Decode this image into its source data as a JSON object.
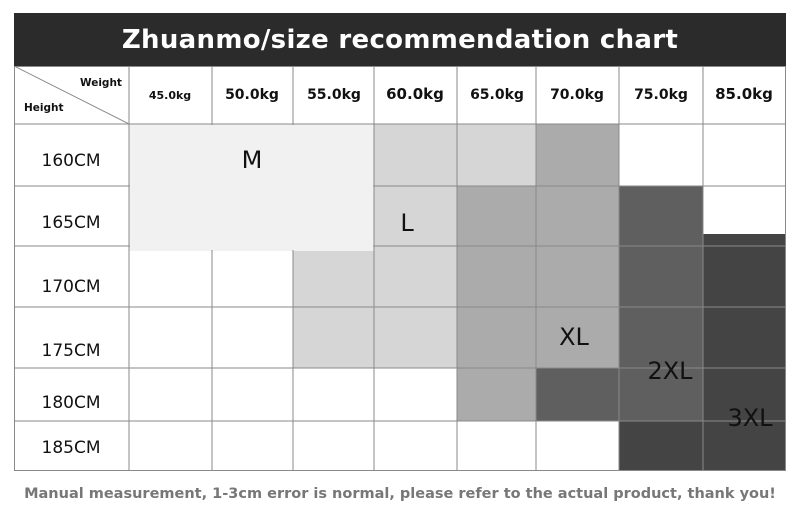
{
  "title": "Zhuanmo/size recommendation chart",
  "corner": {
    "weight_label": "Weight",
    "height_label": "Height"
  },
  "weights": [
    "45.0kg",
    "50.0kg",
    "55.0kg",
    "60.0kg",
    "65.0kg",
    "70.0kg",
    "75.0kg",
    "85.0kg"
  ],
  "heights": [
    "160CM",
    "165CM",
    "170CM",
    "175CM",
    "180CM",
    "185CM"
  ],
  "sizes": [
    {
      "label": "M",
      "color": "#f1f1f1"
    },
    {
      "label": "L",
      "color": "#d6d6d6"
    },
    {
      "label": "XL",
      "color": "#ababab"
    },
    {
      "label": "2XL",
      "color": "#5f5f5f"
    },
    {
      "label": "3XL",
      "color": "#444444"
    }
  ],
  "footer_note": "Manual measurement, 1-3cm error is normal, please refer to the actual product, thank you!"
}
